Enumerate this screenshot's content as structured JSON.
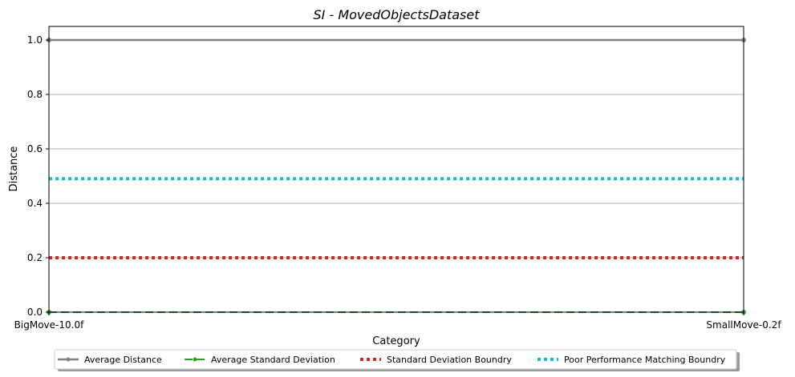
{
  "chart_data": {
    "type": "line",
    "title": "SI - MovedObjectsDataset",
    "xlabel": "Category",
    "ylabel": "Distance",
    "categories": [
      "BigMove-10.0f",
      "SmallMove-0.2f"
    ],
    "ylim": [
      0,
      1.05
    ],
    "yticks": [
      "0.0",
      "0.2",
      "0.4",
      "0.6",
      "0.8",
      "1.0"
    ],
    "grid": "horizontal",
    "legend_position": "bottom-center",
    "series": [
      {
        "name": "Average Distance",
        "values": [
          1.0,
          1.0
        ],
        "color": "#808080",
        "style": "solid-marker"
      },
      {
        "name": "Average Standard Deviation",
        "values": [
          0.0,
          0.0
        ],
        "color": "#2ca02c",
        "style": "dashed-marker"
      },
      {
        "name": "Standard Deviation Boundry",
        "values": [
          0.2,
          0.2
        ],
        "color": "#d62728",
        "style": "dotted"
      },
      {
        "name": "Poor Performance Matching Boundry",
        "values": [
          0.49,
          0.49
        ],
        "color": "#17becf",
        "style": "dotted"
      }
    ]
  }
}
